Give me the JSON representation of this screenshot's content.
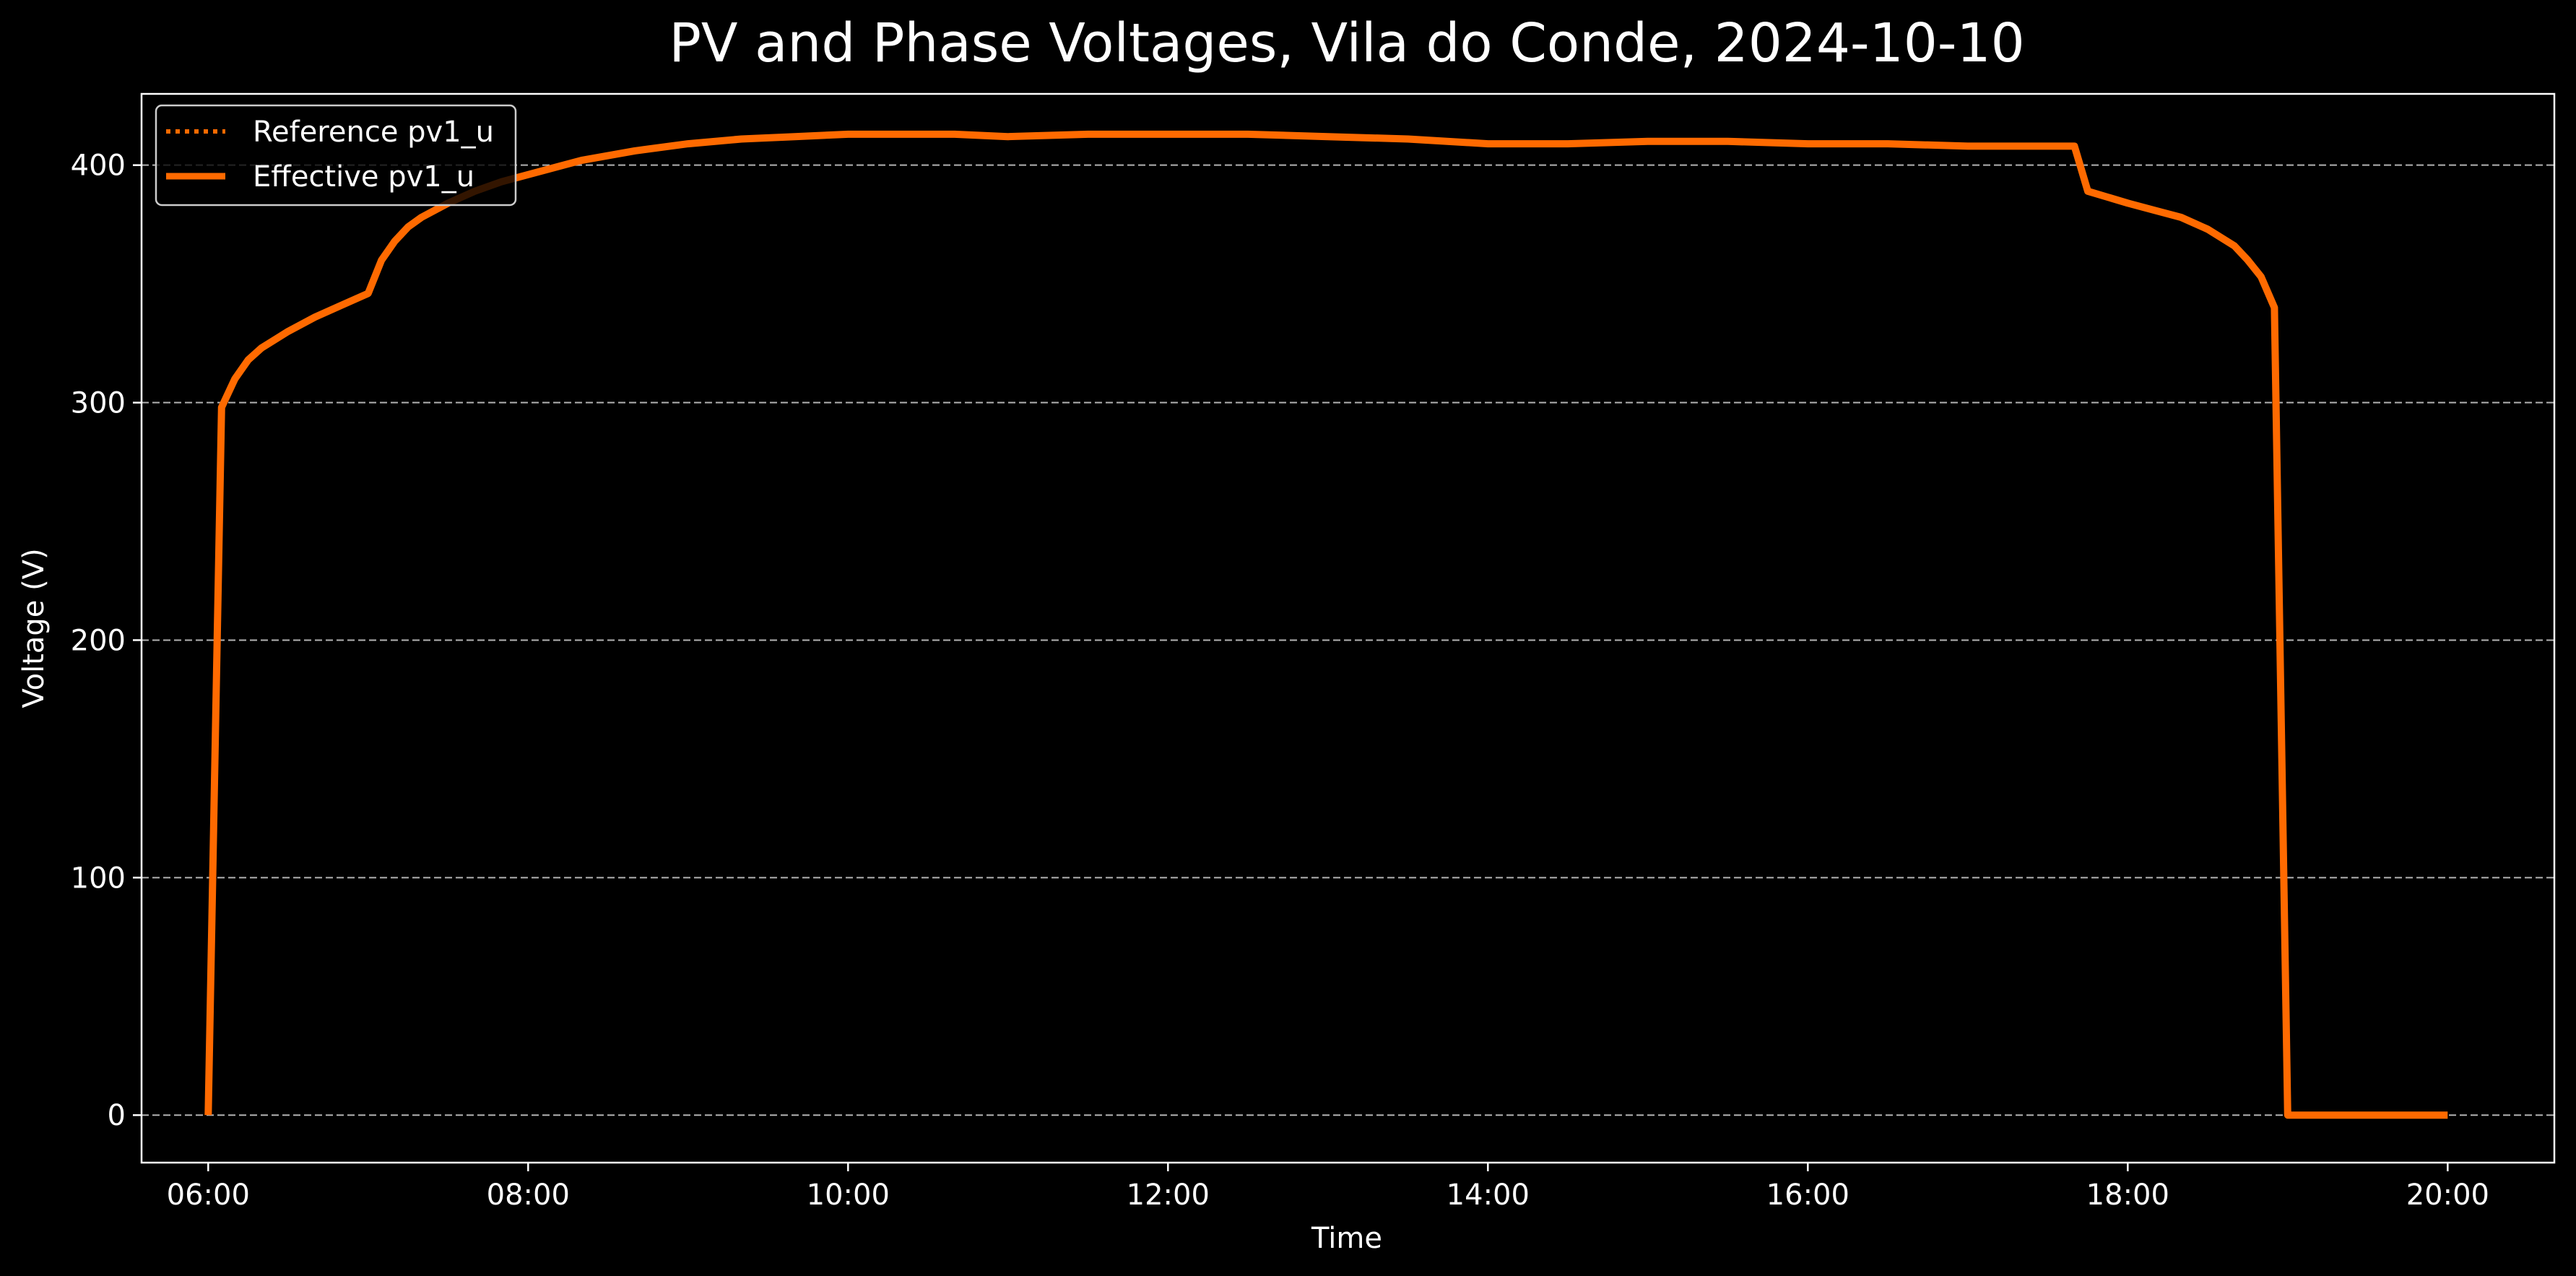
{
  "chart_data": {
    "type": "line",
    "title": "PV and Phase Voltages, Vila do Conde, 2024-10-10",
    "xlabel": "Time",
    "ylabel": "Voltage (V)",
    "x_ticks": [
      "06:00",
      "08:00",
      "10:00",
      "12:00",
      "14:00",
      "16:00",
      "18:00",
      "20:00"
    ],
    "y_ticks": [
      0,
      100,
      200,
      300,
      400
    ],
    "xlim": [
      "05:35",
      "20:40"
    ],
    "ylim": [
      -20,
      430
    ],
    "grid": "horizontal dashed",
    "legend_position": "top-left",
    "series": [
      {
        "name": "Reference pv1_u",
        "style": "dotted",
        "color": "#ff6a00",
        "x": [],
        "y": []
      },
      {
        "name": "Effective pv1_u",
        "style": "solid",
        "color": "#ff6a00",
        "x": [
          "06:00",
          "06:05",
          "06:10",
          "06:15",
          "06:20",
          "06:30",
          "06:40",
          "06:50",
          "07:00",
          "07:05",
          "07:10",
          "07:15",
          "07:20",
          "07:30",
          "07:40",
          "07:50",
          "08:00",
          "08:20",
          "08:40",
          "09:00",
          "09:20",
          "09:40",
          "10:00",
          "10:20",
          "10:40",
          "11:00",
          "11:30",
          "12:00",
          "12:30",
          "13:00",
          "13:30",
          "14:00",
          "14:30",
          "15:00",
          "15:30",
          "16:00",
          "16:30",
          "17:00",
          "17:30",
          "17:40",
          "17:45",
          "18:00",
          "18:10",
          "18:20",
          "18:30",
          "18:40",
          "18:45",
          "18:50",
          "18:55",
          "19:00",
          "19:10",
          "19:30",
          "20:00"
        ],
        "y": [
          0,
          298,
          310,
          318,
          323,
          330,
          336,
          341,
          346,
          360,
          368,
          374,
          378,
          384,
          389,
          393,
          396,
          402,
          406,
          409,
          411,
          412,
          413,
          413,
          413,
          412,
          413,
          413,
          413,
          412,
          411,
          409,
          409,
          410,
          410,
          409,
          409,
          408,
          408,
          408,
          389,
          384,
          381,
          378,
          373,
          366,
          360,
          353,
          340,
          0,
          0,
          0,
          0
        ]
      }
    ],
    "colors": {
      "background": "#000000",
      "foreground": "#ffffff",
      "grid": "#b3b3b3",
      "line": "#ff6a00"
    }
  }
}
